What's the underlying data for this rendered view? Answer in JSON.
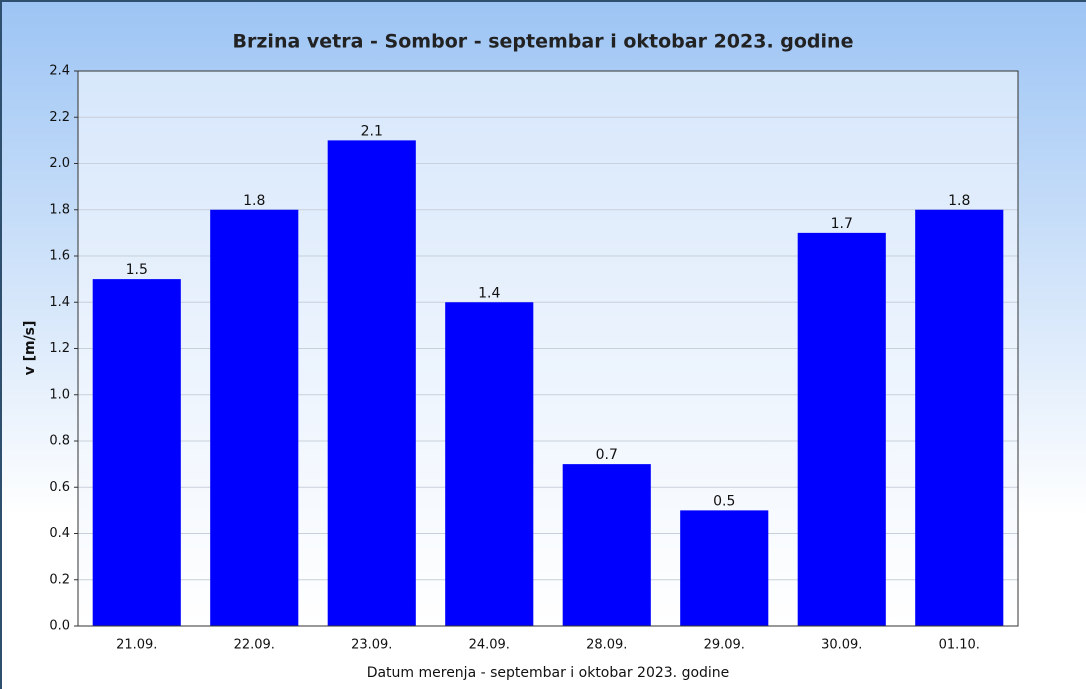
{
  "chart_data": {
    "type": "bar",
    "title": "Brzina vetra - Sombor - septembar i oktobar 2023. godine",
    "x_label": "Datum merenja - septembar i oktobar 2023. godine",
    "y_label": "v [m/s]",
    "categories": [
      "21.09.",
      "22.09.",
      "23.09.",
      "24.09.",
      "28.09.",
      "29.09.",
      "30.09.",
      "01.10."
    ],
    "values": [
      1.5,
      1.8,
      2.1,
      1.4,
      0.7,
      0.5,
      1.7,
      1.8
    ],
    "color": "#0000ff",
    "ylim": [
      0,
      2.4
    ],
    "yticks": [
      {
        "value": 0,
        "label": "0.0"
      },
      0.2,
      0.4,
      0.6,
      0.8,
      {
        "value": 1,
        "label": "1.0"
      },
      1.2,
      1.4,
      1.6,
      1.8,
      {
        "value": 2,
        "label": "2.0"
      },
      2.2,
      2.4
    ],
    "grid": true
  }
}
